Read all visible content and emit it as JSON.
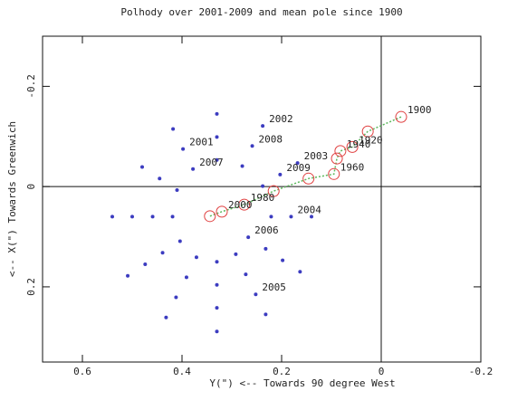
{
  "chart_data": {
    "type": "scatter",
    "title": "Polhody over 2001-2009 and mean pole since 1900",
    "x_label": "Y(\") <-- Towards 90 degree West",
    "y_label": "<-- X(\") Towards Greenwich",
    "xlim": [
      0.68,
      -0.2
    ],
    "ylim": [
      -0.3,
      0.35
    ],
    "y_inverted": true,
    "xticks": [
      0.6,
      0.4,
      0.2,
      0,
      -0.2
    ],
    "yticks": [
      -0.2,
      0,
      0.2
    ],
    "zero_lines": true,
    "series": [
      {
        "color": "#3c3cc0",
        "marker": "dot",
        "x": [
          0.54,
          0.509,
          0.432,
          0.33,
          0.232,
          0.163,
          0.14,
          0.168,
          0.238,
          0.33,
          0.418,
          0.48,
          0.5,
          0.474,
          0.412,
          0.33,
          0.252,
          0.198,
          0.181,
          0.203,
          0.259,
          0.33,
          0.398,
          0.445,
          0.459,
          0.439,
          0.391,
          0.33,
          0.272,
          0.232,
          0.221,
          0.238,
          0.279,
          0.33,
          0.378,
          0.41,
          0.419,
          0.404,
          0.371,
          0.33,
          0.292,
          0.267
        ],
        "values": [
          0.06,
          0.178,
          0.261,
          0.289,
          0.255,
          0.17,
          0.06,
          -0.047,
          -0.121,
          -0.145,
          -0.115,
          -0.039,
          0.06,
          0.155,
          0.221,
          0.242,
          0.215,
          0.147,
          0.06,
          -0.024,
          -0.081,
          -0.099,
          -0.075,
          -0.016,
          0.06,
          0.132,
          0.181,
          0.196,
          0.175,
          0.124,
          0.06,
          -0.001,
          -0.041,
          -0.053,
          -0.035,
          0.007,
          0.06,
          0.109,
          0.141,
          0.15,
          0.135,
          0.101
        ],
        "point_labels": [
          null,
          null,
          null,
          null,
          null,
          null,
          null,
          "2003",
          "2002",
          null,
          null,
          null,
          null,
          null,
          null,
          null,
          "2005",
          null,
          "2004",
          "2009",
          "2008",
          null,
          "2001",
          null,
          null,
          null,
          null,
          null,
          null,
          null,
          null,
          null,
          null,
          null,
          "2007",
          null,
          null,
          null,
          null,
          null,
          null,
          "2006"
        ]
      },
      {
        "color": "#e04040",
        "line_color": "#5cb85c",
        "marker": "circle",
        "x": [
          -0.04,
          0.027,
          0.058,
          0.082,
          0.089,
          0.095,
          0.146,
          0.216,
          0.275,
          0.32,
          0.344
        ],
        "values": [
          -0.139,
          -0.11,
          -0.079,
          -0.071,
          -0.056,
          -0.025,
          -0.016,
          0.009,
          0.036,
          0.05,
          0.059
        ],
        "point_labels": [
          "1900",
          null,
          "1920",
          "1940",
          null,
          "1960",
          null,
          null,
          "1980",
          "2000",
          null
        ]
      }
    ]
  }
}
